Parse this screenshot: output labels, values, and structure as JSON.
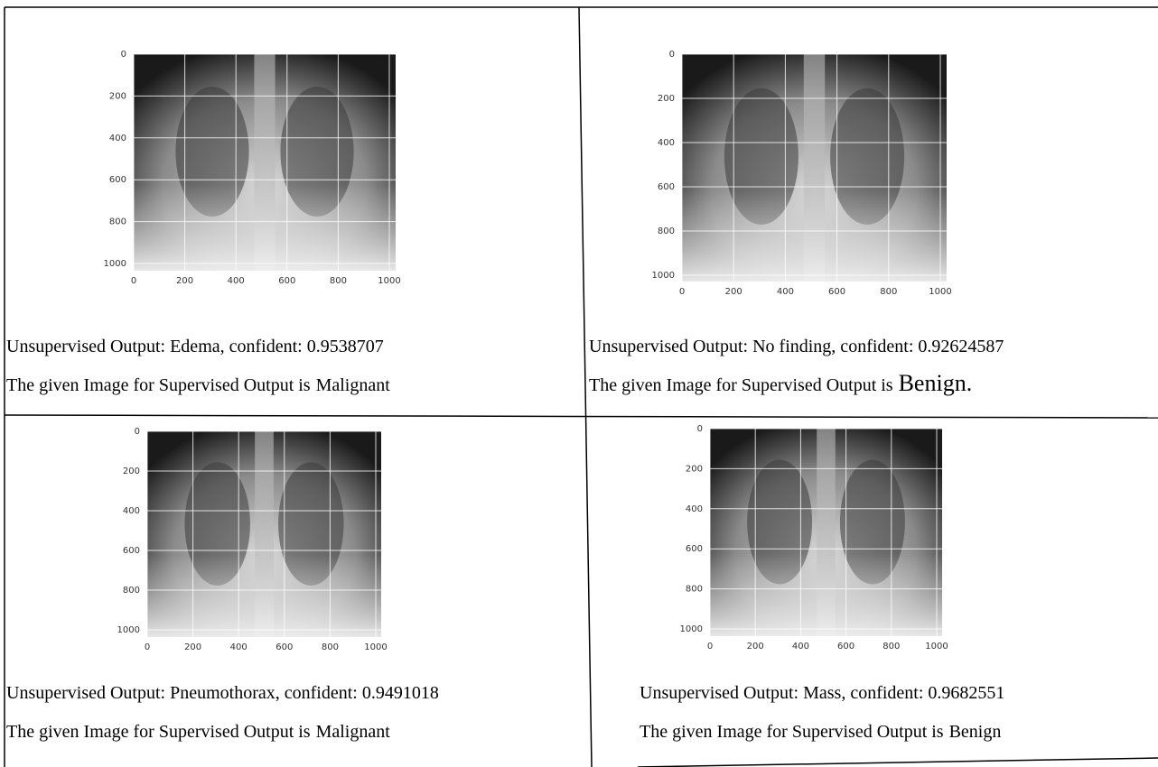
{
  "panels": [
    {
      "xticks": [
        0,
        200,
        400,
        600,
        800,
        1000
      ],
      "yticks": [
        0,
        200,
        400,
        600,
        800,
        1000
      ],
      "unsupervised": "Unsupervised Output: Edema, confident: 0.9538707",
      "supervised_prefix": "The given Image for Supervised Output is",
      "result": "Malignant"
    },
    {
      "xticks": [
        0,
        200,
        400,
        600,
        800,
        1000
      ],
      "yticks": [
        0,
        200,
        400,
        600,
        800,
        1000
      ],
      "unsupervised": "Unsupervised Output: No finding, confident: 0.92624587",
      "supervised_prefix": "The given Image for Supervised Output is",
      "result": "Benign."
    },
    {
      "xticks": [
        0,
        200,
        400,
        600,
        800,
        1000
      ],
      "yticks": [
        0,
        200,
        400,
        600,
        800,
        1000
      ],
      "unsupervised": "Unsupervised Output: Pneumothorax, confident: 0.9491018",
      "supervised_prefix": "The given Image for Supervised Output is",
      "result": "Malignant"
    },
    {
      "xticks": [
        0,
        200,
        400,
        600,
        800,
        1000
      ],
      "yticks": [
        0,
        200,
        400,
        600,
        800,
        1000
      ],
      "unsupervised": "Unsupervised Output: Mass, confident: 0.9682551",
      "supervised_prefix": "The given Image for Supervised Output is",
      "result": "Benign"
    }
  ]
}
